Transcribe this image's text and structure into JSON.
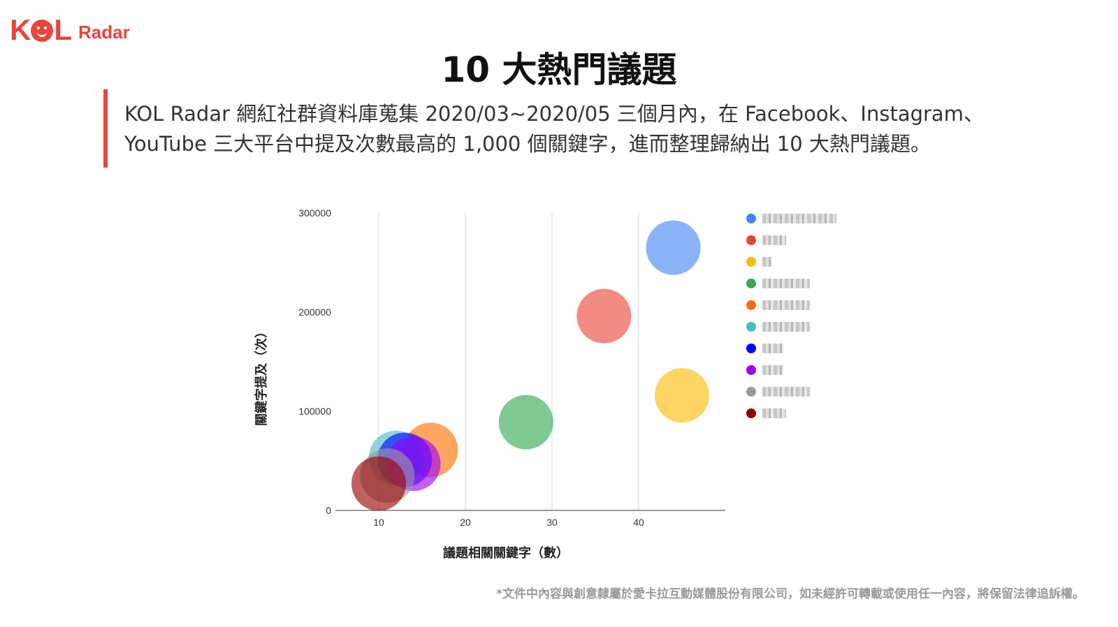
{
  "brand": {
    "logo_k": "K",
    "logo_l": "L",
    "logo_radar": "Radar",
    "accent": "#e8453c"
  },
  "title": "10 大熱門議題",
  "intro": "KOL Radar 網紅社群資料庫蒐集 2020/03~2020/05 三個月內，在 Facebook、Instagram、YouTube 三大平台中提及次數最高的 1,000 個關鍵字，進而整理歸納出 10 大熱門議題。",
  "footer": "*文件中內容與創意隸屬於愛卡拉互動媒體股份有限公司，如未經許可轉載或使用任一內容，將保留法律追訴權。",
  "chart_data": {
    "type": "scatter",
    "title": "",
    "xlabel": "議題相關關鍵字（數）",
    "ylabel": "關鍵字提及（次）",
    "xlim": [
      5,
      50
    ],
    "ylim": [
      0,
      300000
    ],
    "x_ticks": [
      10,
      20,
      30,
      40
    ],
    "y_ticks": [
      0,
      100000,
      200000,
      300000
    ],
    "x_tick_labels": [
      "10",
      "20",
      "30",
      "40"
    ],
    "y_tick_labels": [
      "0",
      "100000",
      "200000",
      "300000"
    ],
    "grid": "vertical",
    "legend": "right",
    "series": [
      {
        "color": "#4285f4",
        "x": 44,
        "y": 265000
      },
      {
        "color": "#ea4335",
        "x": 36,
        "y": 196000
      },
      {
        "color": "#fbbc04",
        "x": 45,
        "y": 116000
      },
      {
        "color": "#34a853",
        "x": 27,
        "y": 89000
      },
      {
        "color": "#ff6d01",
        "x": 16,
        "y": 61000
      },
      {
        "color": "#46bdc6",
        "x": 12,
        "y": 53000
      },
      {
        "color": "#0000ff",
        "x": 13,
        "y": 51000
      },
      {
        "color": "#9900ff",
        "x": 14,
        "y": 47000
      },
      {
        "color": "#999999",
        "x": 11,
        "y": 35000
      },
      {
        "color": "#980000",
        "x": 10,
        "y": 27000
      }
    ]
  }
}
